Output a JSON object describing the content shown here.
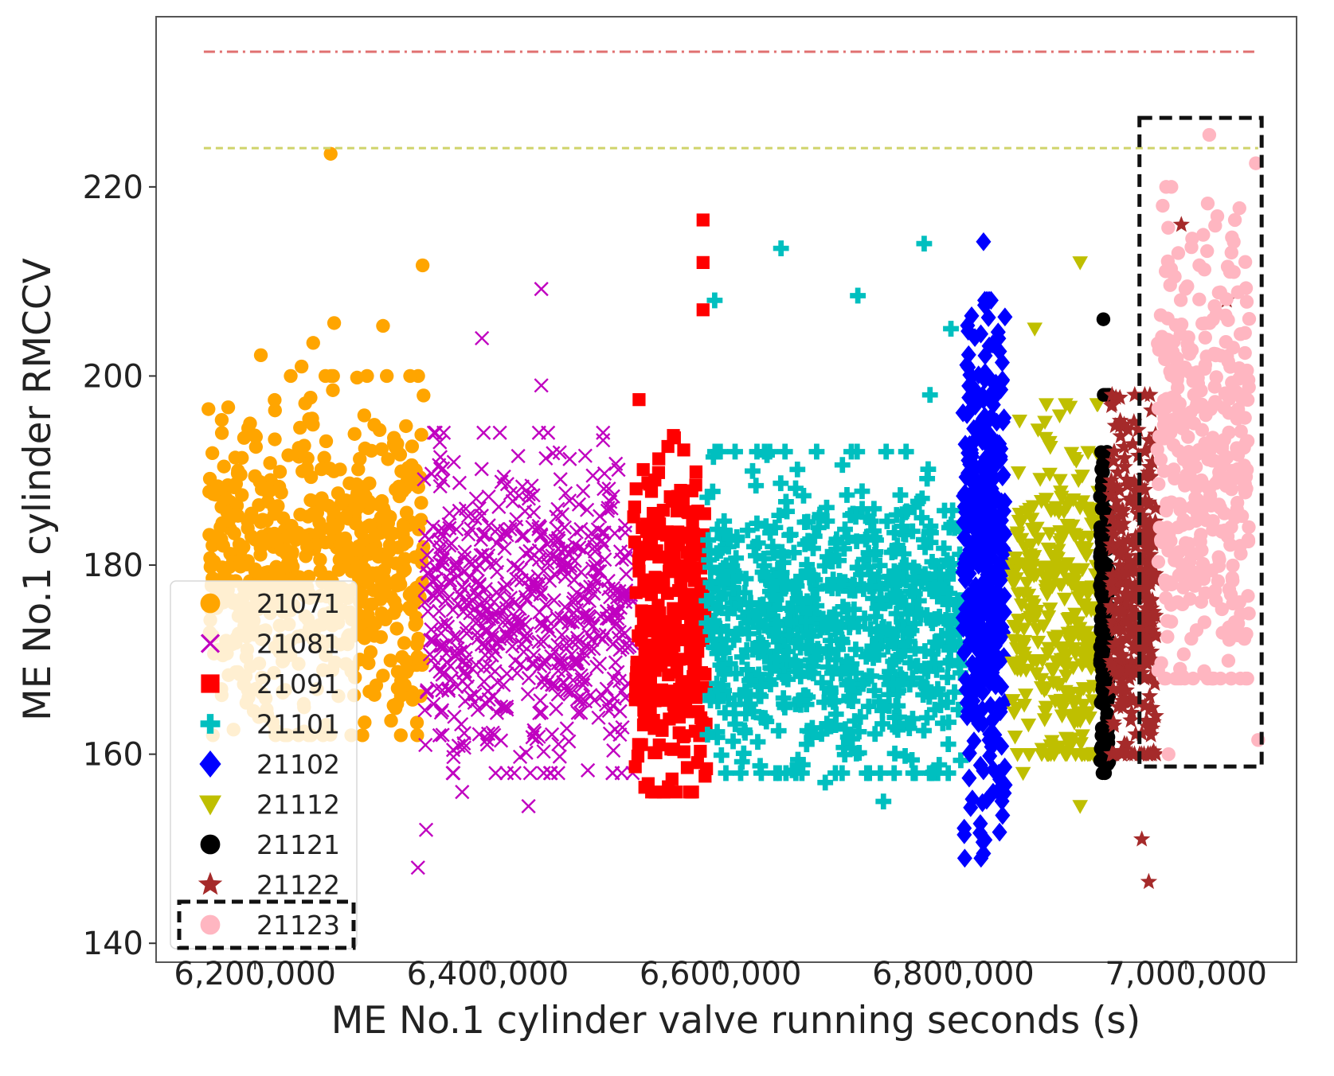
{
  "chart_data": {
    "type": "scatter",
    "xlabel": "ME No.1 cylinder valve running seconds (s)",
    "ylabel": "ME No.1 cylinder RMCCV",
    "xlim": [
      6115000,
      7095000
    ],
    "ylim": [
      138,
      238
    ],
    "x_ticks": [
      {
        "value": 6200000,
        "label": "6,200,000"
      },
      {
        "value": 6400000,
        "label": "6,400,000"
      },
      {
        "value": 6600000,
        "label": "6,600,000"
      },
      {
        "value": 6800000,
        "label": "6,800,000"
      },
      {
        "value": 7000000,
        "label": "7,000,000"
      }
    ],
    "y_ticks": [
      {
        "value": 140,
        "label": "140"
      },
      {
        "value": 160,
        "label": "160"
      },
      {
        "value": 180,
        "label": "180"
      },
      {
        "value": 200,
        "label": "200"
      },
      {
        "value": 220,
        "label": "220"
      }
    ],
    "reference_lines": [
      {
        "name": "upper-limit",
        "y": 234.3,
        "color": "#e07070",
        "style": "dashdot"
      },
      {
        "name": "warning-limit",
        "y": 224.1,
        "color": "#cfd46a",
        "style": "dashed"
      }
    ],
    "highlight_boxes": [
      {
        "name": "latest-period-box",
        "x": [
          6960000,
          7065000
        ],
        "y": [
          158.7,
          227.3
        ]
      }
    ],
    "legend": {
      "position": "lower-left",
      "highlighted_entry": "21123"
    },
    "series": [
      {
        "name": "21071",
        "marker": "circle",
        "color": "#FFA500",
        "x_range": [
          6160000,
          6345000
        ],
        "y_median": 180,
        "y_low": 164,
        "y_high": 198,
        "n": 650,
        "outliers": [
          [
            6265000,
            223.5
          ],
          [
            6344000,
            211.7
          ],
          [
            6268000,
            205.6
          ],
          [
            6310000,
            205.3
          ],
          [
            6205000,
            202.2
          ],
          [
            6250000,
            203.5
          ],
          [
            6160000,
            196.5
          ],
          [
            6240000,
            201.0
          ]
        ]
      },
      {
        "name": "21081",
        "marker": "x",
        "color": "#C000C0",
        "x_range": [
          6345000,
          6525000
        ],
        "y_median": 175,
        "y_low": 160,
        "y_high": 192,
        "n": 600,
        "outliers": [
          [
            6446000,
            209.2
          ],
          [
            6446000,
            199.0
          ],
          [
            6340000,
            148.0
          ],
          [
            6347000,
            152.0
          ],
          [
            6435000,
            154.5
          ],
          [
            6395000,
            204.0
          ],
          [
            6378000,
            156.0
          ]
        ]
      },
      {
        "name": "21091",
        "marker": "square",
        "color": "#FF0000",
        "x_range": [
          6525000,
          6588000
        ],
        "y_median": 174,
        "y_low": 158,
        "y_high": 192,
        "n": 300,
        "outliers": [
          [
            6585000,
            216.5
          ],
          [
            6585000,
            212.0
          ],
          [
            6585000,
            207.0
          ],
          [
            6530000,
            197.5
          ],
          [
            6535000,
            156.5
          ]
        ]
      },
      {
        "name": "21101",
        "marker": "plus",
        "color": "#00BFBF",
        "x_range": [
          6588000,
          6808000
        ],
        "y_median": 174,
        "y_low": 160,
        "y_high": 190,
        "n": 700,
        "outliers": [
          [
            6595000,
            208.0
          ],
          [
            6652000,
            213.5
          ],
          [
            6775000,
            214.0
          ],
          [
            6718000,
            208.5
          ],
          [
            6780000,
            198.0
          ],
          [
            6798000,
            205.0
          ],
          [
            6740000,
            155.0
          ],
          [
            6690000,
            157.0
          ]
        ]
      },
      {
        "name": "21102",
        "marker": "diamond",
        "color": "#0000FF",
        "x_range": [
          6808000,
          6845000
        ],
        "y_median": 180,
        "y_low": 151,
        "y_high": 206,
        "n": 380,
        "outliers": [
          [
            6826000,
            214.2
          ],
          [
            6826000,
            149.5
          ]
        ]
      },
      {
        "name": "21112",
        "marker": "triangle-down",
        "color": "#BFBF00",
        "x_range": [
          6850000,
          6925000
        ],
        "y_median": 175,
        "y_low": 162,
        "y_high": 195,
        "n": 320,
        "outliers": [
          [
            6909000,
            212.0
          ],
          [
            6870000,
            205.0
          ],
          [
            6909000,
            154.5
          ],
          [
            6860000,
            158.0
          ]
        ]
      },
      {
        "name": "21121",
        "marker": "circle",
        "color": "#000000",
        "x_range": [
          6926000,
          6934000
        ],
        "y_median": 175,
        "y_low": 160,
        "y_high": 196,
        "n": 150,
        "outliers": [
          [
            6929000,
            206.0
          ],
          [
            6931000,
            159.0
          ]
        ]
      },
      {
        "name": "21122",
        "marker": "star",
        "color": "#A52A2A",
        "x_range": [
          6935000,
          6975000
        ],
        "y_median": 176,
        "y_low": 162,
        "y_high": 196,
        "n": 350,
        "outliers": [
          [
            6996000,
            216.0
          ],
          [
            7035000,
            208.0
          ],
          [
            6968000,
            146.5
          ],
          [
            6962000,
            151.0
          ]
        ]
      },
      {
        "name": "21123",
        "marker": "circle",
        "color": "#FFB6C1",
        "x_range": [
          6975000,
          7055000
        ],
        "y_median": 190,
        "y_low": 170,
        "y_high": 218,
        "n": 360,
        "outliers": [
          [
            7020000,
            225.5
          ],
          [
            7060000,
            222.5
          ],
          [
            7042000,
            216.5
          ],
          [
            6985000,
            160.0
          ],
          [
            7062000,
            161.5
          ]
        ]
      }
    ]
  }
}
